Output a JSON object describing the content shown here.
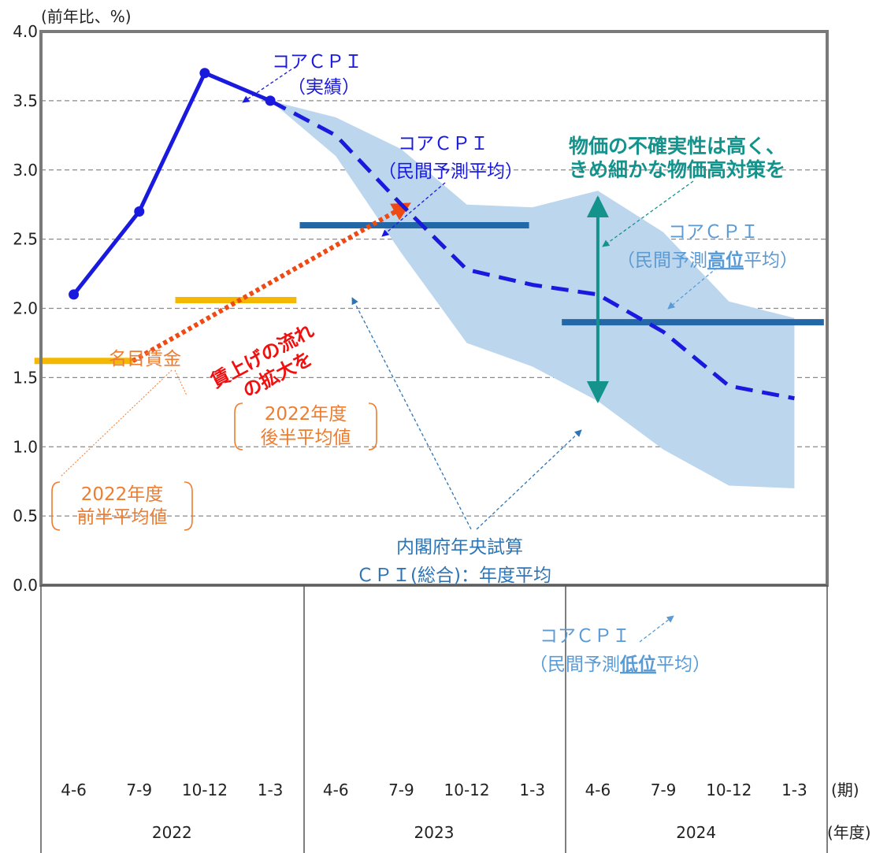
{
  "chart_data": {
    "type": "line",
    "y_unit": "(前年比、%)",
    "x_unit_quarter": "(期)",
    "x_unit_year": "(年度)",
    "ylim": [
      0.0,
      4.0
    ],
    "yticks": [
      "0.0",
      "0.5",
      "1.0",
      "1.5",
      "2.0",
      "2.5",
      "3.0",
      "3.5",
      "4.0"
    ],
    "grid": "horizontal-dashed",
    "quarters": [
      "4-6",
      "7-9",
      "10-12",
      "1-3",
      "4-6",
      "7-9",
      "10-12",
      "1-3",
      "4-6",
      "7-9",
      "10-12",
      "1-3"
    ],
    "years": [
      "2022",
      "2023",
      "2024"
    ],
    "series": [
      {
        "name": "コアCPI(実績)",
        "style": "solid-with-markers",
        "color": "#1a1adf",
        "x": [
          0,
          1,
          2,
          3
        ],
        "values": [
          2.1,
          2.7,
          3.7,
          3.5
        ]
      },
      {
        "name": "コアCPI(民間予測平均)",
        "style": "dashed",
        "color": "#1a1adf",
        "x": [
          3,
          4,
          5,
          6,
          7,
          8,
          9,
          10,
          11
        ],
        "values": [
          3.5,
          3.25,
          2.75,
          2.28,
          2.17,
          2.1,
          1.83,
          1.44,
          1.35
        ]
      }
    ],
    "band": {
      "color": "#bcd6ee",
      "x": [
        3,
        4,
        5,
        6,
        7,
        8,
        9,
        10,
        11
      ],
      "upper": [
        3.5,
        3.38,
        3.15,
        2.75,
        2.73,
        2.85,
        2.55,
        2.05,
        1.93
      ],
      "lower": [
        3.5,
        3.1,
        2.4,
        1.75,
        1.58,
        1.33,
        0.98,
        0.72,
        0.7
      ]
    },
    "wage_bars": {
      "color": "#f5b800",
      "items": [
        {
          "x0": -0.6,
          "x1": 0.9,
          "value": 1.62
        },
        {
          "x0": 1.55,
          "x1": 3.4,
          "value": 2.06
        }
      ]
    },
    "cabinet_bars": {
      "color": "#2268a8",
      "items": [
        {
          "x0": 3.45,
          "x1": 6.95,
          "value": 2.6
        },
        {
          "x0": 7.45,
          "x1": 11.45,
          "value": 1.9
        }
      ]
    },
    "wage_arrow": {
      "x0": 0.9,
      "y0": 1.62,
      "x1": 5.1,
      "y1": 2.75,
      "color": "#f04a14"
    },
    "uncertainty_arrow": {
      "x": 8.0,
      "top": 2.8,
      "bottom": 1.33,
      "color": "#13938c"
    },
    "annotations": {
      "actual": [
        "コアＣＰＩ",
        "（実績）"
      ],
      "forecast_avg": [
        "コアＣＰＩ",
        "（民間予測平均）"
      ],
      "high": [
        "コアＣＰＩ",
        "（民間予測",
        "高位",
        "平均）"
      ],
      "low": [
        "コアＣＰＩ",
        "（民間予測",
        "低位",
        "平均）"
      ],
      "uncertainty": [
        "物価の不確実性は高く、",
        "きめ細かな物価高対策を"
      ],
      "wage_flow": [
        "賃上げの流れ",
        "の拡大を"
      ],
      "nominal_wage": "名目賃金",
      "first_half": [
        "2022年度",
        "前半平均値"
      ],
      "second_half": [
        "2022年度",
        "後半平均値"
      ],
      "cabinet": [
        "内閣府年央試算",
        "ＣＰＩ(総合)：年度平均"
      ]
    }
  }
}
